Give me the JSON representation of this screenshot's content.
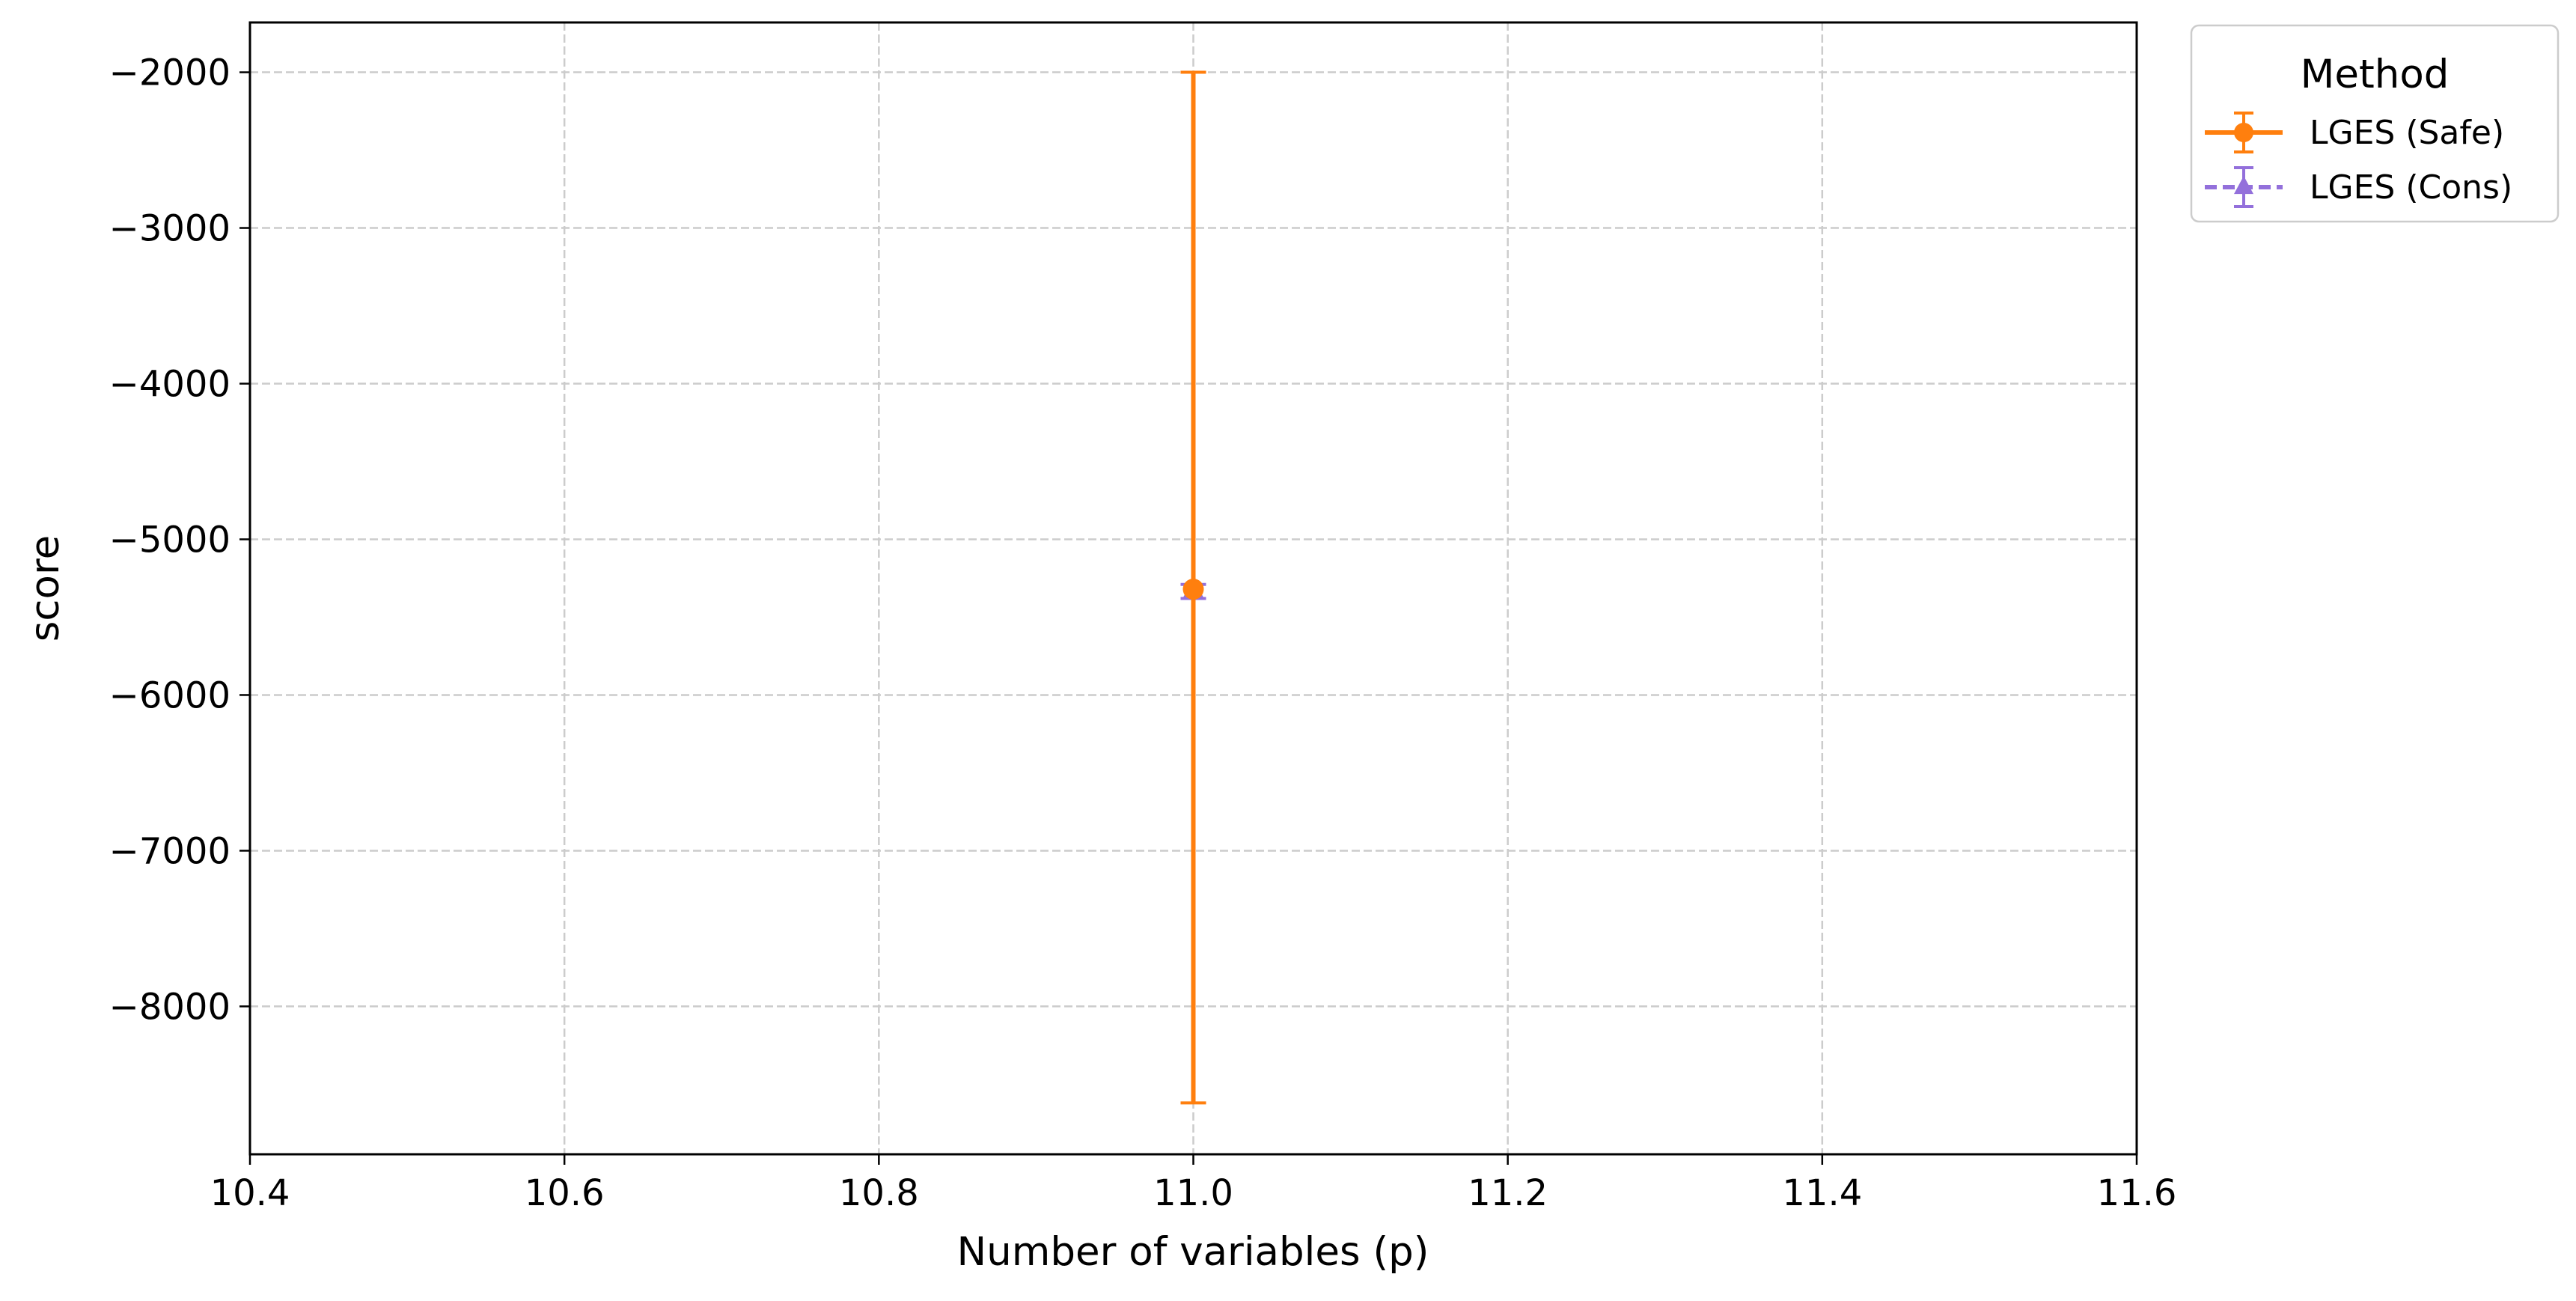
{
  "chart_data": {
    "type": "line",
    "xlabel": "Number of variables (p)",
    "ylabel": "score",
    "xlim": [
      10.4,
      11.6
    ],
    "ylim": [
      -8950,
      -1680
    ],
    "x_ticks": [
      10.4,
      10.6,
      10.8,
      11.0,
      11.2,
      11.4,
      11.6
    ],
    "x_tick_labels": [
      "10.4",
      "10.6",
      "10.8",
      "11.0",
      "11.2",
      "11.4",
      "11.6"
    ],
    "y_ticks": [
      -2000,
      -3000,
      -4000,
      -5000,
      -6000,
      -7000,
      -8000
    ],
    "y_tick_labels": [
      "−2000",
      "−3000",
      "−4000",
      "−5000",
      "−6000",
      "−7000",
      "−8000"
    ],
    "grid": true,
    "legend": {
      "title": "Method",
      "placement": "outside-top-right"
    },
    "series": [
      {
        "name": "LGES (Safe)",
        "color": "#ff7f0e",
        "marker": "circle",
        "linestyle": "solid",
        "x": [
          11.0
        ],
        "y": [
          -5320
        ],
        "yerr_low": [
          -8620
        ],
        "yerr_high": [
          -2000
        ]
      },
      {
        "name": "LGES (Cons)",
        "color": "#9370db",
        "marker": "triangle",
        "linestyle": "dashed",
        "x": [
          11.0
        ],
        "y": [
          -5330
        ],
        "yerr_low": [
          -5380
        ],
        "yerr_high": [
          -5290
        ]
      }
    ]
  }
}
